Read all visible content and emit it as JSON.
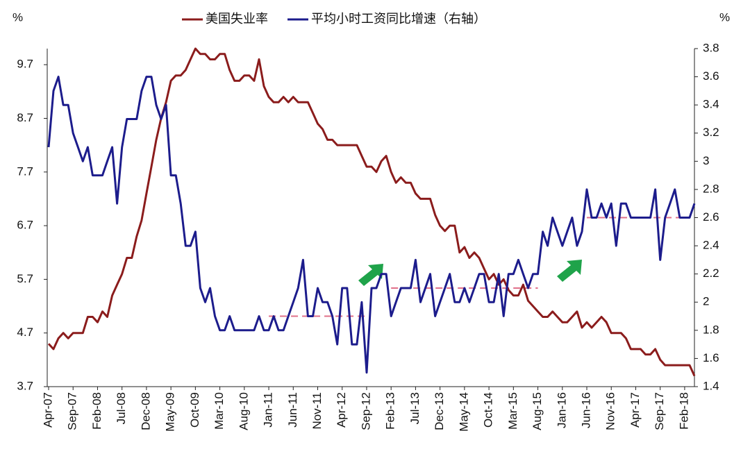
{
  "chart_data": {
    "type": "line",
    "y_unit": "%",
    "y2_unit": "%",
    "categories": [
      "Apr-07",
      null,
      null,
      null,
      null,
      "Sep-07",
      null,
      null,
      null,
      null,
      "Feb-08",
      null,
      null,
      null,
      null,
      "Jul-08",
      null,
      null,
      null,
      null,
      "Dec-08",
      null,
      null,
      null,
      null,
      "May-09",
      null,
      null,
      null,
      null,
      "Oct-09",
      null,
      null,
      null,
      null,
      "Mar-10",
      null,
      null,
      null,
      null,
      "Aug-10",
      null,
      null,
      null,
      null,
      "Jan-11",
      null,
      null,
      null,
      null,
      "Jun-11",
      null,
      null,
      null,
      null,
      "Nov-11",
      null,
      null,
      null,
      null,
      "Apr-12",
      null,
      null,
      null,
      null,
      "Sep-12",
      null,
      null,
      null,
      null,
      "Feb-13",
      null,
      null,
      null,
      null,
      "Jul-13",
      null,
      null,
      null,
      null,
      "Dec-13",
      null,
      null,
      null,
      null,
      "May-14",
      null,
      null,
      null,
      null,
      "Oct-14",
      null,
      null,
      null,
      null,
      "Mar-15",
      null,
      null,
      null,
      null,
      "Aug-15",
      null,
      null,
      null,
      null,
      "Jan-16",
      null,
      null,
      null,
      null,
      "Jun-16",
      null,
      null,
      null,
      null,
      "Nov-16",
      null,
      null,
      null,
      null,
      "Apr-17",
      null,
      null,
      null,
      null,
      "Sep-17",
      null,
      null,
      null,
      null,
      "Feb-18",
      null,
      null
    ],
    "series": [
      {
        "name": "美国失业率",
        "color": "#8b1c1c",
        "axis": "y",
        "values": [
          4.5,
          4.4,
          4.6,
          4.7,
          4.6,
          4.7,
          4.7,
          4.7,
          5.0,
          5.0,
          4.9,
          5.1,
          5.0,
          5.4,
          5.6,
          5.8,
          6.1,
          6.1,
          6.5,
          6.8,
          7.3,
          7.8,
          8.3,
          8.7,
          9.0,
          9.4,
          9.5,
          9.5,
          9.6,
          9.8,
          10.0,
          9.9,
          9.9,
          9.8,
          9.8,
          9.9,
          9.9,
          9.6,
          9.4,
          9.4,
          9.5,
          9.5,
          9.4,
          9.8,
          9.3,
          9.1,
          9.0,
          9.0,
          9.1,
          9.0,
          9.1,
          9.0,
          9.0,
          9.0,
          8.8,
          8.6,
          8.5,
          8.3,
          8.3,
          8.2,
          8.2,
          8.2,
          8.2,
          8.2,
          8.0,
          7.8,
          7.8,
          7.7,
          7.9,
          8.0,
          7.7,
          7.5,
          7.6,
          7.5,
          7.5,
          7.3,
          7.2,
          7.2,
          7.2,
          6.9,
          6.7,
          6.6,
          6.7,
          6.7,
          6.2,
          6.3,
          6.1,
          6.2,
          6.1,
          5.9,
          5.7,
          5.8,
          5.6,
          5.7,
          5.5,
          5.4,
          5.4,
          5.6,
          5.3,
          5.2,
          5.1,
          5.0,
          5.0,
          5.1,
          5.0,
          4.9,
          4.9,
          5.0,
          5.1,
          4.8,
          4.9,
          4.8,
          4.9,
          5.0,
          4.9,
          4.7,
          4.7,
          4.7,
          4.6,
          4.4,
          4.4,
          4.4,
          4.3,
          4.3,
          4.4,
          4.2,
          4.1,
          4.1,
          4.1,
          4.1,
          4.1,
          4.1,
          3.9
        ]
      },
      {
        "name": "平均小时工资同比增速（右轴）",
        "color": "#1c1c8c",
        "axis": "y2",
        "values": [
          3.1,
          3.5,
          3.6,
          3.4,
          3.4,
          3.2,
          3.1,
          3.0,
          3.1,
          2.9,
          2.9,
          2.9,
          3.0,
          3.1,
          2.7,
          3.1,
          3.3,
          3.3,
          3.3,
          3.5,
          3.6,
          3.6,
          3.4,
          3.3,
          3.4,
          2.9,
          2.9,
          2.7,
          2.4,
          2.4,
          2.5,
          2.1,
          2.0,
          2.1,
          1.9,
          1.8,
          1.8,
          1.9,
          1.8,
          1.8,
          1.8,
          1.8,
          1.8,
          1.9,
          1.8,
          1.8,
          1.9,
          1.8,
          1.8,
          1.9,
          2.0,
          2.1,
          2.3,
          1.9,
          1.9,
          2.1,
          2.0,
          2.0,
          1.9,
          1.7,
          2.1,
          2.1,
          1.7,
          1.7,
          2.0,
          1.5,
          2.1,
          2.1,
          2.2,
          2.2,
          1.9,
          2.0,
          2.1,
          2.1,
          2.1,
          2.3,
          2.0,
          2.1,
          2.2,
          1.9,
          2.0,
          2.1,
          2.2,
          2.0,
          2.0,
          2.1,
          2.0,
          2.1,
          2.2,
          2.2,
          2.0,
          2.0,
          2.2,
          1.9,
          2.2,
          2.2,
          2.3,
          2.2,
          2.1,
          2.2,
          2.2,
          2.5,
          2.4,
          2.6,
          2.5,
          2.4,
          2.5,
          2.6,
          2.4,
          2.5,
          2.8,
          2.6,
          2.6,
          2.7,
          2.6,
          2.7,
          2.4,
          2.7,
          2.7,
          2.6,
          2.6,
          2.6,
          2.6,
          2.6,
          2.8,
          2.3,
          2.6,
          2.7,
          2.8,
          2.6,
          2.6,
          2.6,
          2.7
        ]
      }
    ],
    "reference_lines": [
      {
        "value": 1.9,
        "axis": "y2",
        "from": "Jan-11",
        "to": "Sep-12",
        "color": "#e0708a"
      },
      {
        "value": 2.1,
        "axis": "y2",
        "from": "Feb-13",
        "to": "Aug-15",
        "color": "#e0708a"
      },
      {
        "value": 2.6,
        "axis": "y2",
        "from": "Jun-16",
        "to": "Feb-18",
        "color": "#e0708a"
      }
    ],
    "ylim": [
      3.7,
      10.0
    ],
    "yticks": [
      3.7,
      4.7,
      5.7,
      6.7,
      7.7,
      8.7,
      9.7
    ],
    "y2lim": [
      1.4,
      3.8
    ],
    "y2ticks": [
      1.4,
      1.6,
      1.8,
      2,
      2.2,
      2.4,
      2.6,
      2.8,
      3,
      3.2,
      3.4,
      3.6,
      3.8
    ],
    "grid": false,
    "legend": "top"
  }
}
